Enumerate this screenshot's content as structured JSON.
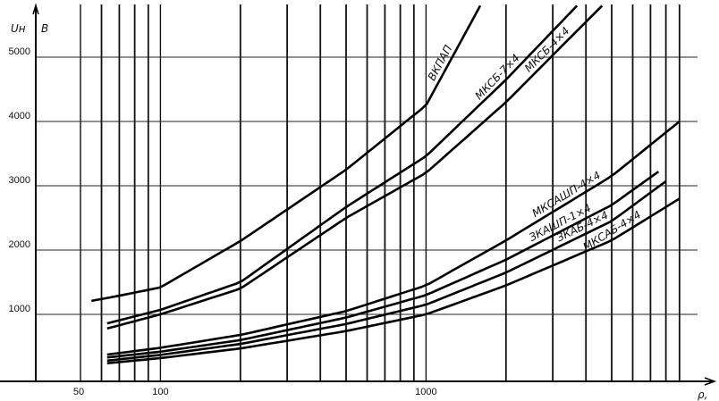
{
  "chart_data": {
    "type": "line",
    "title": "",
    "ylabel": "Uн",
    "yunit": "В",
    "xlabel": "ρ,",
    "xscale": "log",
    "xlim": [
      50,
      10000
    ],
    "ylim": [
      0,
      6000
    ],
    "grid": true,
    "x_tick_labels": [
      {
        "v": 50,
        "t": "50"
      },
      {
        "v": 100,
        "t": "100"
      },
      {
        "v": 1000,
        "t": "1000"
      }
    ],
    "y_tick_labels": [
      {
        "v": 1000,
        "t": "1000"
      },
      {
        "v": 2000,
        "t": "2000"
      },
      {
        "v": 3000,
        "t": "3000"
      },
      {
        "v": 4000,
        "t": "4000"
      },
      {
        "v": 5000,
        "t": "5000"
      }
    ],
    "x_grid": [
      50,
      60,
      70,
      80,
      90,
      100,
      200,
      300,
      400,
      500,
      600,
      700,
      800,
      900,
      1000,
      2000,
      3000,
      4000,
      5000,
      6000,
      7000,
      8000,
      9000
    ],
    "series": [
      {
        "name": "ВКПАП",
        "x": [
          55,
          70,
          100,
          200,
          500,
          1000,
          1600
        ],
        "y": [
          1210,
          1290,
          1420,
          2140,
          3250,
          4250,
          5800
        ]
      },
      {
        "name": "МКСБ-7×4",
        "x": [
          63,
          100,
          200,
          500,
          1000,
          2000,
          3700
        ],
        "y": [
          860,
          1070,
          1500,
          2670,
          3460,
          4650,
          5800
        ]
      },
      {
        "name": "МКСБ-4×4",
        "x": [
          63,
          100,
          200,
          500,
          1000,
          2000,
          4600
        ],
        "y": [
          780,
          1000,
          1400,
          2500,
          3200,
          4300,
          5800
        ]
      },
      {
        "name": "МКСАШП-4×4",
        "x": [
          63,
          100,
          200,
          500,
          1000,
          2000,
          5000,
          9000
        ],
        "y": [
          375,
          480,
          680,
          1050,
          1450,
          2150,
          3150,
          4000
        ]
      },
      {
        "name": "ЗКАШП-1×4",
        "x": [
          63,
          100,
          200,
          500,
          1000,
          2000,
          5000,
          7500
        ],
        "y": [
          330,
          420,
          600,
          950,
          1300,
          1850,
          2700,
          3220
        ]
      },
      {
        "name": "ЗКАБ-4×4",
        "x": [
          63,
          100,
          200,
          500,
          1000,
          2000,
          5000,
          8000
        ],
        "y": [
          280,
          370,
          540,
          850,
          1150,
          1650,
          2450,
          3070
        ]
      },
      {
        "name": "МКСАБ-4×4",
        "x": [
          63,
          100,
          200,
          500,
          1000,
          2000,
          5000,
          9000
        ],
        "y": [
          240,
          320,
          470,
          740,
          1000,
          1450,
          2150,
          2800
        ]
      }
    ],
    "annotations": [
      {
        "series": 0,
        "text": "ВКПАП",
        "at_x": 1200
      },
      {
        "series": 1,
        "text": "МКСБ-7×4",
        "at_x": 1950
      },
      {
        "series": 2,
        "text": "МКСБ-4×4",
        "at_x": 3000
      },
      {
        "series": 3,
        "text": "МКСАШП-4×4",
        "at_x": 3500
      },
      {
        "series": 4,
        "text": "ЗКАШП-1×4",
        "at_x": 3300
      },
      {
        "series": 5,
        "text": "ЗКАБ-4×4",
        "at_x": 4000
      },
      {
        "series": 6,
        "text": "МКСАБ-4×4",
        "at_x": 5200
      }
    ]
  }
}
